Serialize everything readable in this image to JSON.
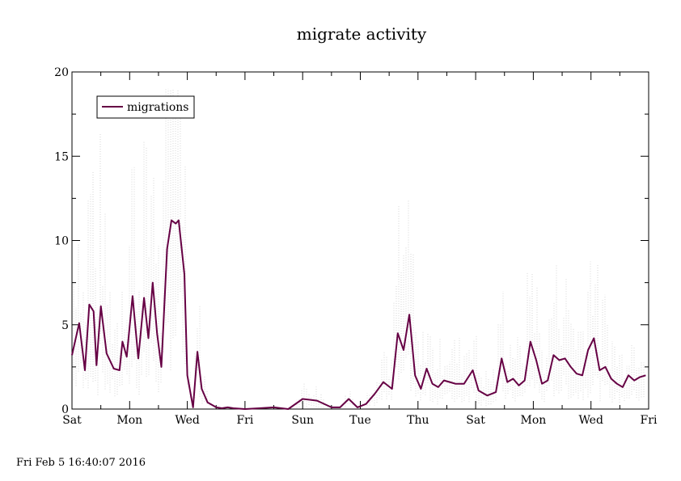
{
  "footer": {
    "timestamp": "Fri Feb  5 16:40:07 2016"
  },
  "chart_data": {
    "type": "line",
    "title": "migrate activity",
    "xlabel": "",
    "ylabel": "",
    "ylim": [
      0,
      20
    ],
    "yticks": [
      0,
      5,
      10,
      15,
      20
    ],
    "x_tick_labels": [
      "Sat",
      "Mon",
      "Wed",
      "Fri",
      "Sun",
      "Tue",
      "Thu",
      "Sat",
      "Mon",
      "Wed",
      "Fri"
    ],
    "x_range_days": [
      0,
      20
    ],
    "legend": {
      "position": "top-left",
      "entries": [
        "migrations"
      ]
    },
    "grid": false,
    "colors": {
      "series": "#660044",
      "raw": "#cccccc"
    },
    "series": [
      {
        "name": "migrations",
        "x": [
          0,
          0.25,
          0.45,
          0.6,
          0.75,
          0.85,
          1.0,
          1.2,
          1.45,
          1.65,
          1.75,
          1.9,
          2.1,
          2.3,
          2.5,
          2.65,
          2.8,
          2.95,
          3.1,
          3.3,
          3.45,
          3.6,
          3.7,
          3.9,
          4.0,
          4.2,
          4.35,
          4.5,
          4.7,
          4.9,
          5.0,
          5.2,
          5.4,
          5.6,
          6.0,
          6.5,
          7.0,
          7.5,
          8.0,
          8.5,
          9.0,
          9.3,
          9.6,
          9.9,
          10.2,
          10.5,
          10.8,
          11.1,
          11.3,
          11.5,
          11.7,
          11.9,
          12.1,
          12.3,
          12.5,
          12.7,
          12.9,
          13.1,
          13.3,
          13.6,
          13.9,
          14.1,
          14.4,
          14.7,
          14.9,
          15.1,
          15.3,
          15.5,
          15.7,
          15.9,
          16.1,
          16.3,
          16.5,
          16.7,
          16.9,
          17.1,
          17.3,
          17.5,
          17.7,
          17.9,
          18.1,
          18.3,
          18.5,
          18.7,
          18.9,
          19.1,
          19.3,
          19.5,
          19.7,
          19.9
        ],
        "values": [
          3.2,
          5.1,
          2.3,
          6.2,
          5.8,
          2.6,
          6.1,
          3.3,
          2.4,
          2.3,
          4.0,
          3.1,
          6.7,
          3.0,
          6.6,
          4.2,
          7.5,
          4.5,
          2.5,
          9.5,
          11.2,
          11.0,
          11.2,
          8.0,
          2.0,
          0.1,
          3.4,
          1.2,
          0.4,
          0.2,
          0.1,
          0.05,
          0.1,
          0.05,
          0.0,
          0.05,
          0.1,
          0.0,
          0.6,
          0.5,
          0.1,
          0.1,
          0.6,
          0.1,
          0.3,
          0.9,
          1.6,
          1.2,
          4.5,
          3.5,
          5.6,
          2.0,
          1.2,
          2.4,
          1.5,
          1.3,
          1.7,
          1.6,
          1.5,
          1.5,
          2.3,
          1.1,
          0.8,
          1.0,
          3.0,
          1.6,
          1.8,
          1.4,
          1.7,
          4.0,
          2.9,
          1.5,
          1.7,
          3.2,
          2.9,
          3.0,
          2.5,
          2.1,
          2.0,
          3.5,
          4.2,
          2.3,
          2.5,
          1.8,
          1.5,
          1.3,
          2.0,
          1.7,
          1.9,
          2.0
        ]
      }
    ]
  }
}
